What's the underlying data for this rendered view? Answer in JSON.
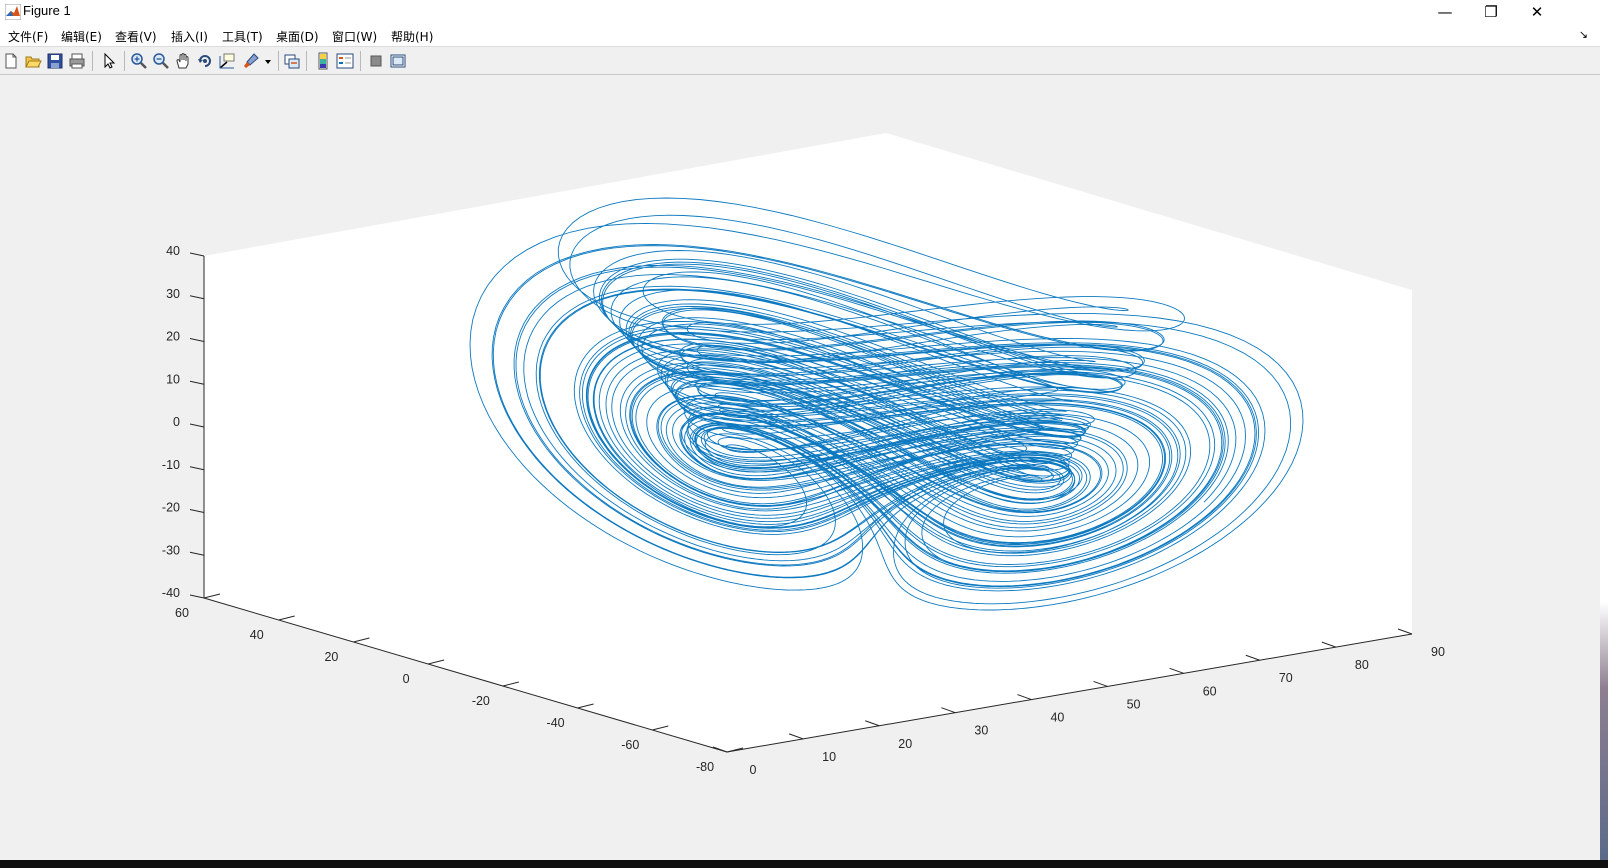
{
  "window": {
    "title": "Figure 1",
    "controls": {
      "minimize": "—",
      "restore": "❐",
      "close": "✕"
    }
  },
  "menubar": {
    "items": [
      "文件(F)",
      "编辑(E)",
      "查看(V)",
      "插入(I)",
      "工具(T)",
      "桌面(D)",
      "窗口(W)",
      "帮助(H)"
    ],
    "dock_arrow": "↘"
  },
  "toolbar": {
    "buttons": [
      "new-figure-icon",
      "open-file-icon",
      "save-icon",
      "print-icon",
      "select-arrow-icon",
      "zoom-in-icon",
      "zoom-out-icon",
      "pan-hand-icon",
      "rotate-3d-icon",
      "data-cursor-icon",
      "brush-icon",
      "link-plot-icon",
      "colorbar-icon",
      "legend-icon",
      "hide-plot-tools-icon",
      "show-plot-tools-icon"
    ]
  },
  "colors": {
    "line": "#0072bd",
    "axes_bg": "#ffffff",
    "figure_bg": "#f0f0f0",
    "axis": "#262626"
  },
  "chart_data": {
    "type": "line",
    "projection": "3d",
    "z_ticks": [
      "40",
      "30",
      "20",
      "10",
      "0",
      "-10",
      "-20",
      "-30",
      "-40"
    ],
    "y_ticks": [
      "60",
      "40",
      "20",
      "0",
      "-20",
      "-40",
      "-60",
      "-80"
    ],
    "x_ticks": [
      "0",
      "10",
      "20",
      "30",
      "40",
      "50",
      "60",
      "70",
      "80",
      "90"
    ],
    "xlim": [
      0,
      90
    ],
    "ylim": [
      -80,
      60
    ],
    "zlim": [
      -40,
      40
    ],
    "series": [
      {
        "values": "chaotic double-scroll attractor trajectory"
      }
    ]
  }
}
